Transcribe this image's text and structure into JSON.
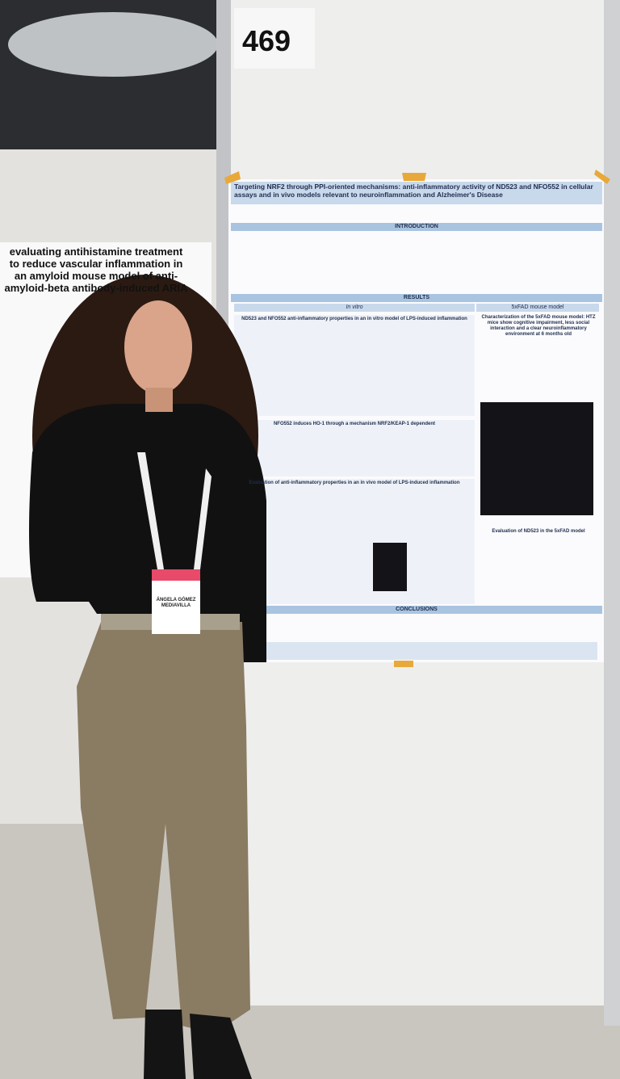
{
  "board_number": "469",
  "left_poster": {
    "title": "evaluating antihistamine treatment to reduce vascular inflammation in an amyloid mouse model of anti-amyloid-beta antibody-induced ARIA"
  },
  "poster": {
    "title": "Targeting NRF2 through PPI-oriented mechanisms: anti-inflammatory activity of ND523 and NFO552 in cellular assays and in vivo models relevant to neuroinflammation and Alzheimer's Disease",
    "sections": {
      "introduction": "INTRODUCTION",
      "results": "RESULTS",
      "in_vitro": "In vitro",
      "mouse_model": "5xFAD mouse model",
      "conclusions": "CONCLUSIONS"
    },
    "panels": [
      "ND523 and NFO552 anti-inflammatory properties in an in vitro model of LPS-induced inflammation",
      "NFO552 induces HO-1 through a mechanism NRF2/KEAP-1 dependent",
      "Evaluation of anti-inflammatory properties in an in vivo model of LPS-induced inflammation",
      "Characterization of the 5xFAD mouse model: HTZ mice show cognitive impairment, less social interaction and a clear neuroinflammatory environment at 6 months old",
      "Evaluation of ND523 in the 5xFAD model"
    ]
  },
  "badge": {
    "name": "ÁNGELA GÓMEZ MEDIAVILLA"
  }
}
